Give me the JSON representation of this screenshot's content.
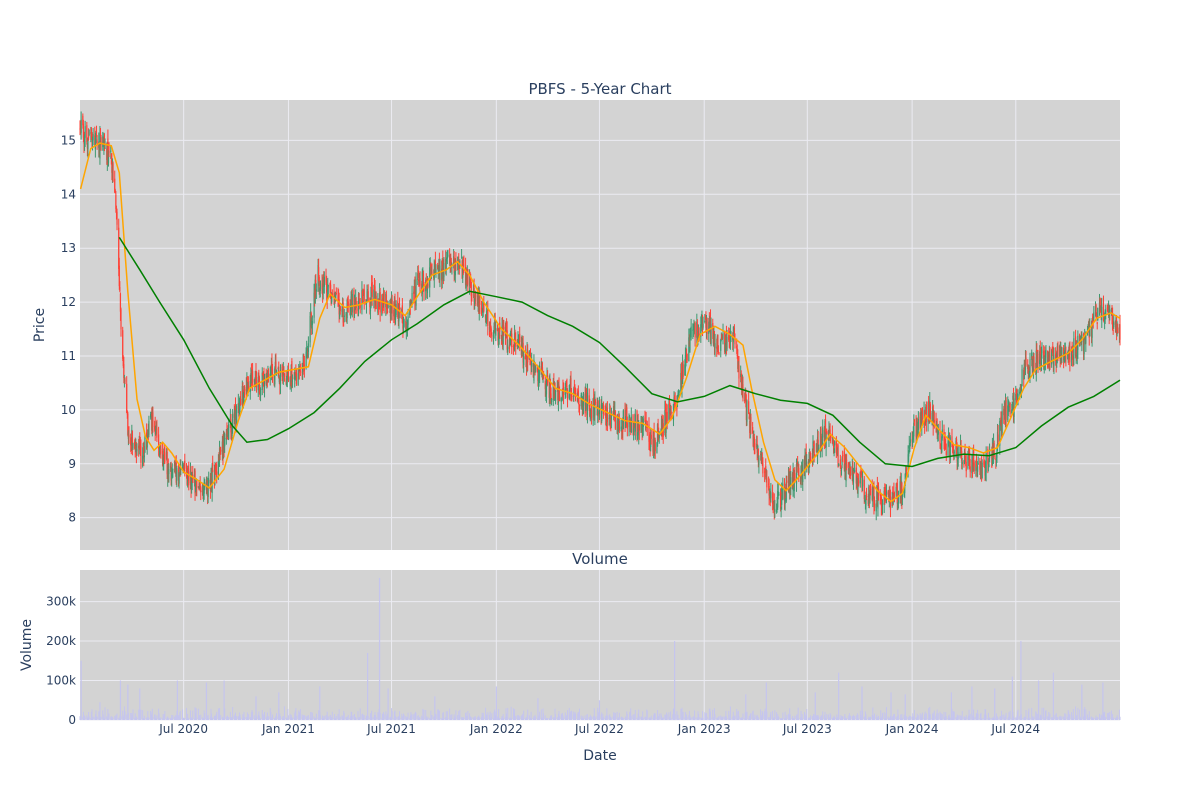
{
  "colors": {
    "panel_background": "#d3d3d3",
    "grid": "#ebebf2",
    "text": "#2a3f5f",
    "candle_up": "#3d9970",
    "candle_down": "#ff4136",
    "ma_short": "#ffa500",
    "ma_long": "#008000",
    "volume_bar": "#c5c5ee"
  },
  "chart_data": [
    {
      "type": "candlestick",
      "title": "PBFS - 5-Year Chart",
      "ylabel": "Price",
      "ylim": [
        7.4,
        15.75
      ],
      "y_ticks": [
        8,
        9,
        10,
        11,
        12,
        13,
        14,
        15
      ],
      "grid": true,
      "x_range": [
        "2020-01-01",
        "2024-12-31"
      ],
      "x_ticks": [
        {
          "date": "2020-07-01",
          "label": "Jul 2020"
        },
        {
          "date": "2021-01-01",
          "label": "Jan 2021"
        },
        {
          "date": "2021-07-01",
          "label": "Jul 2021"
        },
        {
          "date": "2022-01-01",
          "label": "Jan 2022"
        },
        {
          "date": "2022-07-01",
          "label": "Jul 2022"
        },
        {
          "date": "2023-01-01",
          "label": "Jan 2023"
        },
        {
          "date": "2023-07-01",
          "label": "Jul 2023"
        },
        {
          "date": "2024-01-01",
          "label": "Jan 2024"
        },
        {
          "date": "2024-07-01",
          "label": "Jul 2024"
        }
      ],
      "price_path": [
        [
          "2020-01-02",
          15.2
        ],
        [
          "2020-01-20",
          15.0
        ],
        [
          "2020-02-10",
          14.9
        ],
        [
          "2020-02-25",
          14.6
        ],
        [
          "2020-03-05",
          13.6
        ],
        [
          "2020-03-15",
          11.2
        ],
        [
          "2020-03-25",
          9.6
        ],
        [
          "2020-04-05",
          9.4
        ],
        [
          "2020-04-20",
          9.2
        ],
        [
          "2020-05-05",
          9.8
        ],
        [
          "2020-05-20",
          9.3
        ],
        [
          "2020-06-10",
          8.8
        ],
        [
          "2020-07-01",
          8.9
        ],
        [
          "2020-07-25",
          8.6
        ],
        [
          "2020-08-15",
          8.6
        ],
        [
          "2020-09-05",
          9.2
        ],
        [
          "2020-10-01",
          9.9
        ],
        [
          "2020-10-20",
          10.5
        ],
        [
          "2020-11-15",
          10.5
        ],
        [
          "2020-12-10",
          10.7
        ],
        [
          "2021-01-10",
          10.6
        ],
        [
          "2021-02-01",
          11.0
        ],
        [
          "2021-02-20",
          12.5
        ],
        [
          "2021-03-10",
          12.2
        ],
        [
          "2021-04-05",
          11.8
        ],
        [
          "2021-05-01",
          12.0
        ],
        [
          "2021-06-01",
          12.1
        ],
        [
          "2021-07-01",
          11.9
        ],
        [
          "2021-07-25",
          11.6
        ],
        [
          "2021-08-15",
          12.3
        ],
        [
          "2021-09-05",
          12.5
        ],
        [
          "2021-10-01",
          12.6
        ],
        [
          "2021-10-25",
          12.8
        ],
        [
          "2021-11-15",
          12.4
        ],
        [
          "2021-12-10",
          11.7
        ],
        [
          "2022-01-10",
          11.4
        ],
        [
          "2022-02-10",
          11.2
        ],
        [
          "2022-03-10",
          10.7
        ],
        [
          "2022-04-10",
          10.3
        ],
        [
          "2022-05-10",
          10.4
        ],
        [
          "2022-06-10",
          10.1
        ],
        [
          "2022-07-10",
          9.9
        ],
        [
          "2022-08-10",
          9.8
        ],
        [
          "2022-09-10",
          9.7
        ],
        [
          "2022-10-05",
          9.4
        ],
        [
          "2022-10-25",
          9.8
        ],
        [
          "2022-11-15",
          10.2
        ],
        [
          "2022-12-05",
          11.3
        ],
        [
          "2023-01-01",
          11.6
        ],
        [
          "2023-02-01",
          11.2
        ],
        [
          "2023-02-20",
          11.5
        ],
        [
          "2023-03-10",
          10.3
        ],
        [
          "2023-03-25",
          9.6
        ],
        [
          "2023-04-15",
          8.9
        ],
        [
          "2023-05-05",
          8.2
        ],
        [
          "2023-06-01",
          8.7
        ],
        [
          "2023-07-01",
          9.0
        ],
        [
          "2023-08-01",
          9.6
        ],
        [
          "2023-08-25",
          9.1
        ],
        [
          "2023-09-20",
          8.8
        ],
        [
          "2023-10-20",
          8.4
        ],
        [
          "2023-11-20",
          8.3
        ],
        [
          "2023-12-15",
          8.5
        ],
        [
          "2024-01-05",
          9.6
        ],
        [
          "2024-02-01",
          10.0
        ],
        [
          "2024-02-25",
          9.4
        ],
        [
          "2024-03-20",
          9.2
        ],
        [
          "2024-04-15",
          9.0
        ],
        [
          "2024-05-05",
          8.9
        ],
        [
          "2024-05-25",
          9.2
        ],
        [
          "2024-06-10",
          9.9
        ],
        [
          "2024-07-01",
          10.2
        ],
        [
          "2024-07-20",
          10.9
        ],
        [
          "2024-08-15",
          10.9
        ],
        [
          "2024-09-10",
          11.0
        ],
        [
          "2024-10-05",
          11.1
        ],
        [
          "2024-11-01",
          11.3
        ],
        [
          "2024-11-25",
          11.9
        ],
        [
          "2024-12-15",
          11.7
        ],
        [
          "2024-12-31",
          11.5
        ]
      ],
      "series": [
        {
          "kind": "moving-average-short",
          "color": "#ffa500",
          "points": [
            [
              "2020-01-02",
              14.1
            ],
            [
              "2020-01-20",
              14.85
            ],
            [
              "2020-02-05",
              14.95
            ],
            [
              "2020-02-25",
              14.9
            ],
            [
              "2020-03-10",
              14.4
            ],
            [
              "2020-03-25",
              12.2
            ],
            [
              "2020-04-10",
              10.2
            ],
            [
              "2020-04-25",
              9.5
            ],
            [
              "2020-05-10",
              9.25
            ],
            [
              "2020-05-25",
              9.4
            ],
            [
              "2020-06-10",
              9.2
            ],
            [
              "2020-07-01",
              8.85
            ],
            [
              "2020-07-25",
              8.7
            ],
            [
              "2020-08-15",
              8.55
            ],
            [
              "2020-09-10",
              8.9
            ],
            [
              "2020-10-05",
              9.8
            ],
            [
              "2020-10-25",
              10.4
            ],
            [
              "2020-11-20",
              10.55
            ],
            [
              "2020-12-15",
              10.7
            ],
            [
              "2021-01-10",
              10.75
            ],
            [
              "2021-02-05",
              10.8
            ],
            [
              "2021-02-25",
              11.7
            ],
            [
              "2021-03-15",
              12.15
            ],
            [
              "2021-04-10",
              11.9
            ],
            [
              "2021-05-05",
              11.95
            ],
            [
              "2021-06-01",
              12.05
            ],
            [
              "2021-07-01",
              11.95
            ],
            [
              "2021-07-25",
              11.75
            ],
            [
              "2021-08-15",
              12.1
            ],
            [
              "2021-09-10",
              12.5
            ],
            [
              "2021-10-05",
              12.6
            ],
            [
              "2021-10-25",
              12.75
            ],
            [
              "2021-11-15",
              12.5
            ],
            [
              "2021-12-10",
              12.0
            ],
            [
              "2022-01-10",
              11.5
            ],
            [
              "2022-02-10",
              11.2
            ],
            [
              "2022-03-15",
              10.8
            ],
            [
              "2022-04-15",
              10.4
            ],
            [
              "2022-05-15",
              10.3
            ],
            [
              "2022-06-15",
              10.1
            ],
            [
              "2022-07-15",
              9.95
            ],
            [
              "2022-08-15",
              9.8
            ],
            [
              "2022-09-15",
              9.75
            ],
            [
              "2022-10-15",
              9.55
            ],
            [
              "2022-11-05",
              9.85
            ],
            [
              "2022-12-01",
              10.6
            ],
            [
              "2022-12-25",
              11.4
            ],
            [
              "2023-01-20",
              11.55
            ],
            [
              "2023-02-15",
              11.4
            ],
            [
              "2023-03-10",
              11.2
            ],
            [
              "2023-03-25",
              10.4
            ],
            [
              "2023-04-15",
              9.4
            ],
            [
              "2023-05-05",
              8.7
            ],
            [
              "2023-05-25",
              8.5
            ],
            [
              "2023-06-20",
              8.8
            ],
            [
              "2023-07-20",
              9.2
            ],
            [
              "2023-08-10",
              9.55
            ],
            [
              "2023-09-05",
              9.3
            ],
            [
              "2023-10-05",
              8.9
            ],
            [
              "2023-11-01",
              8.5
            ],
            [
              "2023-11-25",
              8.3
            ],
            [
              "2023-12-15",
              8.45
            ],
            [
              "2024-01-05",
              9.3
            ],
            [
              "2024-01-25",
              9.9
            ],
            [
              "2024-02-20",
              9.6
            ],
            [
              "2024-03-15",
              9.35
            ],
            [
              "2024-04-10",
              9.3
            ],
            [
              "2024-05-05",
              9.2
            ],
            [
              "2024-05-30",
              9.3
            ],
            [
              "2024-06-20",
              9.8
            ],
            [
              "2024-07-15",
              10.4
            ],
            [
              "2024-08-05",
              10.75
            ],
            [
              "2024-09-01",
              10.9
            ],
            [
              "2024-10-01",
              11.05
            ],
            [
              "2024-10-25",
              11.3
            ],
            [
              "2024-11-20",
              11.7
            ],
            [
              "2024-12-15",
              11.8
            ],
            [
              "2024-12-31",
              11.7
            ]
          ]
        },
        {
          "kind": "moving-average-long",
          "color": "#008000",
          "points": [
            [
              "2020-03-10",
              13.2
            ],
            [
              "2020-04-15",
              12.6
            ],
            [
              "2020-05-20",
              12.0
            ],
            [
              "2020-07-01",
              11.3
            ],
            [
              "2020-08-15",
              10.4
            ],
            [
              "2020-09-25",
              9.7
            ],
            [
              "2020-10-20",
              9.4
            ],
            [
              "2020-11-25",
              9.45
            ],
            [
              "2021-01-01",
              9.65
            ],
            [
              "2021-02-15",
              9.95
            ],
            [
              "2021-04-01",
              10.4
            ],
            [
              "2021-05-15",
              10.9
            ],
            [
              "2021-07-01",
              11.3
            ],
            [
              "2021-08-15",
              11.6
            ],
            [
              "2021-10-01",
              11.95
            ],
            [
              "2021-11-15",
              12.2
            ],
            [
              "2022-01-01",
              12.1
            ],
            [
              "2022-02-15",
              12.0
            ],
            [
              "2022-04-01",
              11.75
            ],
            [
              "2022-05-15",
              11.55
            ],
            [
              "2022-07-01",
              11.25
            ],
            [
              "2022-08-15",
              10.8
            ],
            [
              "2022-10-01",
              10.3
            ],
            [
              "2022-11-15",
              10.15
            ],
            [
              "2023-01-01",
              10.25
            ],
            [
              "2023-02-15",
              10.45
            ],
            [
              "2023-04-01",
              10.3
            ],
            [
              "2023-05-15",
              10.18
            ],
            [
              "2023-07-01",
              10.12
            ],
            [
              "2023-08-15",
              9.9
            ],
            [
              "2023-10-01",
              9.4
            ],
            [
              "2023-11-15",
              9.0
            ],
            [
              "2024-01-01",
              8.95
            ],
            [
              "2024-02-15",
              9.1
            ],
            [
              "2024-04-01",
              9.18
            ],
            [
              "2024-05-15",
              9.15
            ],
            [
              "2024-07-01",
              9.3
            ],
            [
              "2024-08-15",
              9.7
            ],
            [
              "2024-10-01",
              10.05
            ],
            [
              "2024-11-15",
              10.25
            ],
            [
              "2024-12-31",
              10.55
            ]
          ]
        }
      ]
    },
    {
      "type": "bar",
      "title": "Volume",
      "xlabel": "Date",
      "ylabel": "Volume",
      "ylim": [
        0,
        380000
      ],
      "y_ticks": [
        {
          "value": 0,
          "label": "0"
        },
        {
          "value": 100000,
          "label": "100k"
        },
        {
          "value": 200000,
          "label": "200k"
        },
        {
          "value": 300000,
          "label": "300k"
        }
      ],
      "grid": true,
      "spikes": [
        [
          "2020-01-03",
          150000
        ],
        [
          "2020-02-05",
          45000
        ],
        [
          "2020-03-12",
          100000
        ],
        [
          "2020-03-25",
          90000
        ],
        [
          "2020-04-15",
          80000
        ],
        [
          "2020-06-20",
          100000
        ],
        [
          "2020-08-10",
          95000
        ],
        [
          "2020-09-10",
          100000
        ],
        [
          "2020-11-05",
          60000
        ],
        [
          "2020-12-15",
          70000
        ],
        [
          "2021-02-25",
          85000
        ],
        [
          "2021-05-20",
          170000
        ],
        [
          "2021-06-10",
          360000
        ],
        [
          "2021-06-25",
          80000
        ],
        [
          "2021-09-15",
          60000
        ],
        [
          "2022-01-01",
          85000
        ],
        [
          "2022-03-15",
          55000
        ],
        [
          "2022-07-01",
          50000
        ],
        [
          "2022-11-10",
          200000
        ],
        [
          "2023-03-15",
          65000
        ],
        [
          "2023-04-20",
          95000
        ],
        [
          "2023-07-15",
          70000
        ],
        [
          "2023-08-25",
          120000
        ],
        [
          "2023-10-05",
          85000
        ],
        [
          "2023-11-25",
          70000
        ],
        [
          "2023-12-20",
          65000
        ],
        [
          "2024-03-10",
          70000
        ],
        [
          "2024-04-15",
          85000
        ],
        [
          "2024-05-25",
          80000
        ],
        [
          "2024-06-25",
          110000
        ],
        [
          "2024-07-10",
          200000
        ],
        [
          "2024-08-10",
          100000
        ],
        [
          "2024-09-05",
          120000
        ],
        [
          "2024-10-25",
          90000
        ],
        [
          "2024-12-01",
          95000
        ]
      ]
    }
  ]
}
